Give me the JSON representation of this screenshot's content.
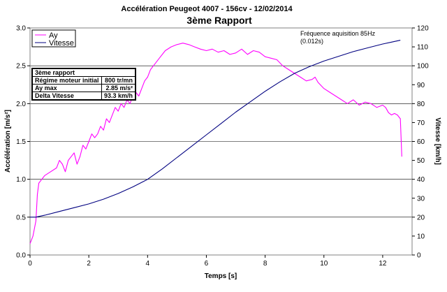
{
  "chart_data": {
    "type": "line",
    "title": "Accélération Peugeot 4007 - 156cv - 12/02/2014",
    "subtitle": "3ème Rapport",
    "xlabel": "Temps [s]",
    "ylabel_left": "Accélération [m/s²]",
    "ylabel_right": "Vitesse [km/h]",
    "xlim": [
      0,
      13
    ],
    "ylim_left": [
      0,
      3
    ],
    "ylim_right": [
      0,
      120
    ],
    "x_ticks": [
      "0",
      "2",
      "4",
      "6",
      "8",
      "10",
      "12"
    ],
    "y_left_ticks": [
      "0.0",
      "0.5",
      "1.0",
      "1.5",
      "2.0",
      "2.5",
      "3.0"
    ],
    "y_right_ticks": [
      "0",
      "10",
      "20",
      "30",
      "40",
      "50",
      "60",
      "70",
      "80",
      "90",
      "100",
      "110",
      "120"
    ],
    "grid": "horizontal",
    "legend_position": "top-left",
    "note_lines": [
      "Fréquence aquisition 85Hz",
      "(0.012s)"
    ],
    "series": [
      {
        "name": "Ay",
        "axis": "left",
        "color": "#ff00ff",
        "x": [
          0.0,
          0.1,
          0.2,
          0.25,
          0.3,
          0.4,
          0.5,
          0.7,
          0.9,
          1.0,
          1.1,
          1.2,
          1.3,
          1.4,
          1.5,
          1.6,
          1.7,
          1.8,
          1.9,
          2.0,
          2.1,
          2.2,
          2.3,
          2.4,
          2.5,
          2.6,
          2.7,
          2.8,
          2.9,
          3.0,
          3.1,
          3.2,
          3.3,
          3.4,
          3.5,
          3.6,
          3.7,
          3.8,
          3.9,
          4.0,
          4.1,
          4.2,
          4.4,
          4.6,
          4.8,
          5.0,
          5.2,
          5.4,
          5.6,
          5.8,
          6.0,
          6.2,
          6.4,
          6.6,
          6.8,
          7.0,
          7.2,
          7.4,
          7.6,
          7.8,
          8.0,
          8.2,
          8.4,
          8.6,
          8.8,
          9.0,
          9.2,
          9.4,
          9.6,
          9.7,
          9.8,
          10.0,
          10.2,
          10.4,
          10.6,
          10.8,
          11.0,
          11.2,
          11.4,
          11.6,
          11.8,
          12.0,
          12.1,
          12.2,
          12.3,
          12.4,
          12.5,
          12.6,
          12.65
        ],
        "values": [
          0.15,
          0.25,
          0.45,
          0.8,
          0.95,
          1.0,
          1.05,
          1.1,
          1.15,
          1.25,
          1.2,
          1.1,
          1.25,
          1.3,
          1.35,
          1.2,
          1.3,
          1.45,
          1.4,
          1.5,
          1.6,
          1.55,
          1.6,
          1.7,
          1.65,
          1.8,
          1.75,
          1.85,
          1.95,
          1.9,
          2.0,
          1.95,
          2.05,
          2.0,
          2.1,
          2.15,
          2.1,
          2.2,
          2.3,
          2.35,
          2.45,
          2.5,
          2.6,
          2.7,
          2.75,
          2.78,
          2.8,
          2.78,
          2.75,
          2.72,
          2.7,
          2.72,
          2.68,
          2.7,
          2.65,
          2.67,
          2.72,
          2.65,
          2.7,
          2.68,
          2.62,
          2.6,
          2.58,
          2.5,
          2.45,
          2.4,
          2.35,
          2.3,
          2.32,
          2.35,
          2.28,
          2.2,
          2.15,
          2.1,
          2.05,
          2.0,
          2.05,
          1.98,
          2.02,
          2.0,
          1.95,
          1.98,
          1.95,
          1.88,
          1.85,
          1.87,
          1.85,
          1.8,
          1.3
        ]
      },
      {
        "name": "Vitesse",
        "axis": "right",
        "color": "#000080",
        "x": [
          0.0,
          0.2,
          0.5,
          1.0,
          1.5,
          2.0,
          2.5,
          3.0,
          3.5,
          4.0,
          4.5,
          5.0,
          5.5,
          6.0,
          6.5,
          7.0,
          7.5,
          8.0,
          8.5,
          9.0,
          9.5,
          10.0,
          10.5,
          11.0,
          11.5,
          12.0,
          12.3,
          12.6
        ],
        "values": [
          20.0,
          20.0,
          21.0,
          23.0,
          25.0,
          27.0,
          29.5,
          32.5,
          36.0,
          40.0,
          45.5,
          51.5,
          57.5,
          63.5,
          69.5,
          75.5,
          81.0,
          86.5,
          91.5,
          96.0,
          99.5,
          102.5,
          105.0,
          107.5,
          109.5,
          111.5,
          112.5,
          113.5
        ]
      }
    ]
  },
  "info_table": {
    "header": "3ème rapport",
    "rows": [
      {
        "label": "Régime moteur initial",
        "value": "800 tr/mn"
      },
      {
        "label": "Ay max",
        "value": "2.85 m/s²"
      },
      {
        "label": "Delta Vitesse",
        "value": "93.3 km/h"
      }
    ]
  }
}
